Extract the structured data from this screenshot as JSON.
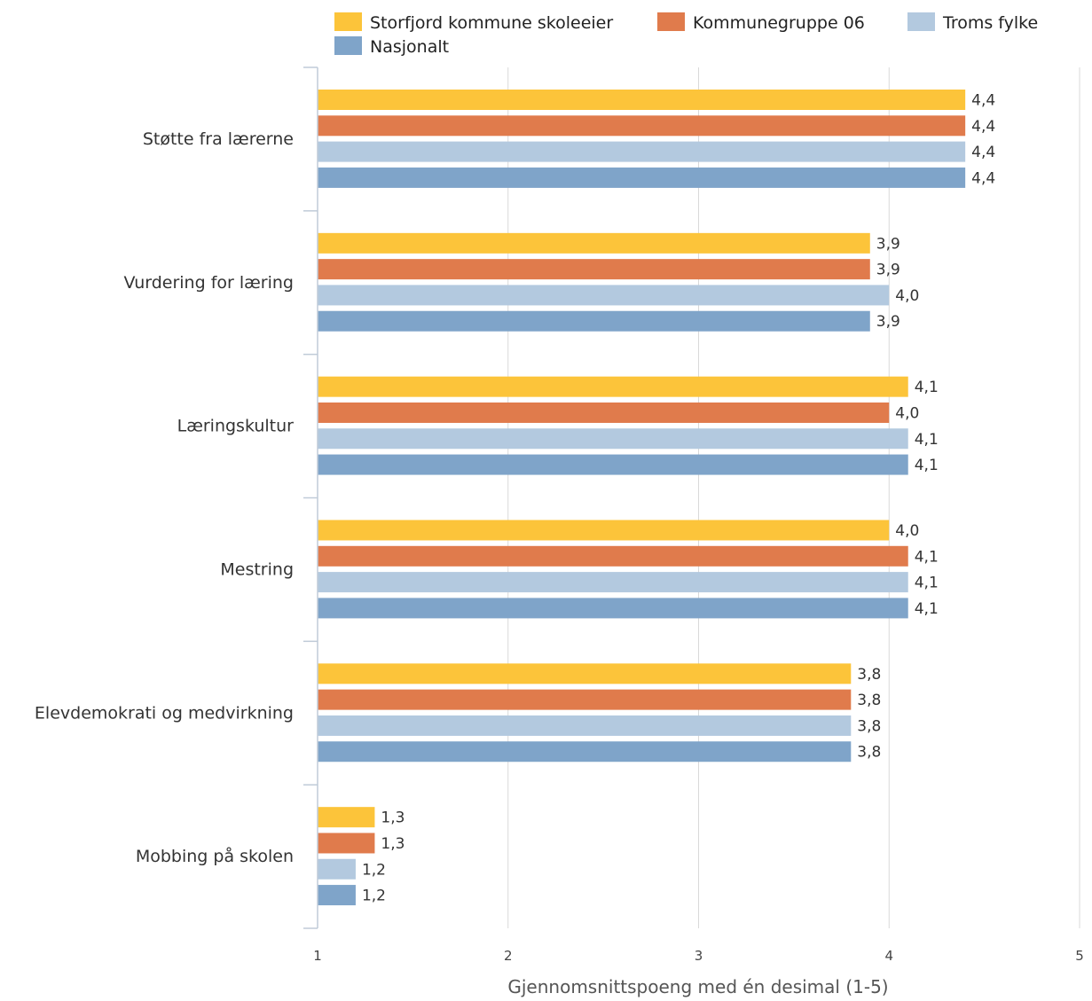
{
  "chart_data": {
    "type": "bar",
    "orientation": "horizontal",
    "categories": [
      "Støtte fra lærerne",
      "Vurdering for læring",
      "Læringskultur",
      "Mestring",
      "Elevdemokrati og medvirkning",
      "Mobbing på skolen"
    ],
    "series": [
      {
        "name": "Storfjord kommune skoleeier",
        "color": "#fcc43a",
        "values": [
          4.4,
          3.9,
          4.1,
          4.0,
          3.8,
          1.3
        ],
        "labels": [
          "4,4",
          "3,9",
          "4,1",
          "4,0",
          "3,8",
          "1,3"
        ]
      },
      {
        "name": "Kommunegruppe 06",
        "color": "#e07b4c",
        "values": [
          4.4,
          3.9,
          4.0,
          4.1,
          3.8,
          1.3
        ],
        "labels": [
          "4,4",
          "3,9",
          "4,0",
          "4,1",
          "3,8",
          "1,3"
        ]
      },
      {
        "name": "Troms fylke",
        "color": "#b3c9df",
        "values": [
          4.4,
          4.0,
          4.1,
          4.1,
          3.8,
          1.2
        ],
        "labels": [
          "4,4",
          "4,0",
          "4,1",
          "4,1",
          "3,8",
          "1,2"
        ]
      },
      {
        "name": "Nasjonalt",
        "color": "#7fa4c9",
        "values": [
          4.4,
          3.9,
          4.1,
          4.1,
          3.8,
          1.2
        ],
        "labels": [
          "4,4",
          "3,9",
          "4,1",
          "4,1",
          "3,8",
          "1,2"
        ]
      }
    ],
    "xlim": [
      1,
      5
    ],
    "xticks": [
      "1",
      "2",
      "3",
      "4",
      "5"
    ],
    "xlabel": "Gjennomsnittspoeng med én desimal (1-5)",
    "legend": "top",
    "grid": true
  }
}
